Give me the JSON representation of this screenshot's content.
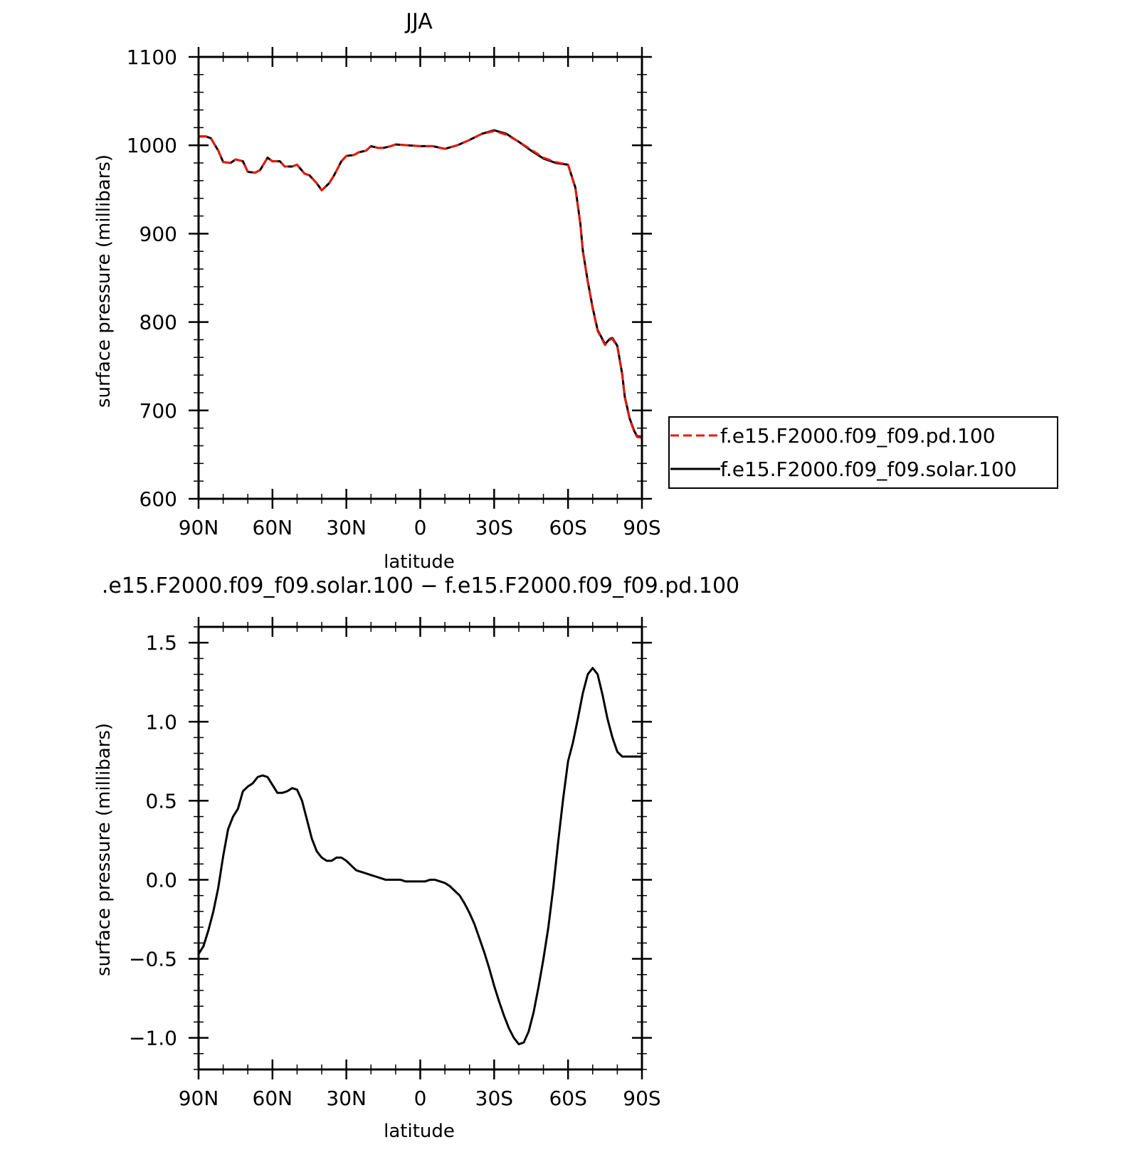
{
  "chart_data": [
    {
      "type": "line",
      "title": "JJA",
      "xlabel": "latitude",
      "ylabel": "surface pressure (millibars)",
      "xlim": [
        90,
        -90
      ],
      "ylim": [
        600,
        1100
      ],
      "x_ticks": [
        {
          "value": 90,
          "label": "90N"
        },
        {
          "value": 60,
          "label": "60N"
        },
        {
          "value": 30,
          "label": "30N"
        },
        {
          "value": 0,
          "label": "0"
        },
        {
          "value": -30,
          "label": "30S"
        },
        {
          "value": -60,
          "label": "60S"
        },
        {
          "value": -90,
          "label": "90S"
        }
      ],
      "y_ticks": [
        {
          "value": 600,
          "label": "600"
        },
        {
          "value": 700,
          "label": "700"
        },
        {
          "value": 800,
          "label": "800"
        },
        {
          "value": 900,
          "label": "900"
        },
        {
          "value": 1000,
          "label": "1000"
        },
        {
          "value": 1100,
          "label": "1100"
        }
      ],
      "legend_position": "right",
      "x": [
        90,
        87,
        85,
        82,
        80,
        77,
        75,
        72,
        70,
        67,
        65,
        62,
        60,
        57,
        55,
        52,
        50,
        47,
        45,
        42,
        40,
        37,
        35,
        32,
        30,
        27,
        25,
        22,
        20,
        17,
        15,
        12,
        10,
        5,
        0,
        -5,
        -10,
        -15,
        -20,
        -25,
        -30,
        -35,
        -40,
        -45,
        -50,
        -55,
        -60,
        -63,
        -65,
        -66,
        -68,
        -70,
        -72,
        -75,
        -77,
        -78,
        -80,
        -82,
        -83,
        -85,
        -87,
        -88,
        -90
      ],
      "series": [
        {
          "name": "f.e15.F2000.f09_f09.pd.100",
          "color": "#e8170f",
          "dash": "dashed",
          "values": [
            1010,
            1010,
            1008,
            994,
            981,
            980,
            984,
            982,
            970,
            969,
            972,
            986,
            982,
            982,
            976,
            976,
            978,
            968,
            966,
            957,
            949,
            957,
            966,
            982,
            988,
            989,
            992,
            994,
            999,
            997,
            997,
            999,
            1001,
            1000,
            999,
            999,
            996,
            1000,
            1006,
            1013,
            1016,
            1012,
            1004,
            995,
            986,
            981,
            978,
            951,
            910,
            880,
            845,
            815,
            790,
            774,
            780,
            781,
            772,
            740,
            715,
            690,
            675,
            670,
            669
          ]
        },
        {
          "name": "f.e15.F2000.f09_f09.solar.100",
          "color": "#000000",
          "dash": "solid",
          "values": [
            1010,
            1010,
            1008,
            994,
            981,
            980,
            984,
            982,
            970,
            969,
            972,
            986,
            982,
            982,
            976,
            976,
            978,
            968,
            966,
            957,
            949,
            957,
            966,
            982,
            988,
            989,
            992,
            994,
            999,
            997,
            997,
            999,
            1001,
            1000,
            999,
            999,
            996,
            1000,
            1006,
            1013,
            1017,
            1013,
            1004,
            994,
            985,
            980,
            978,
            952,
            911,
            881,
            846,
            816,
            791,
            775,
            781,
            782,
            773,
            741,
            716,
            691,
            676,
            671,
            670
          ]
        }
      ]
    },
    {
      "type": "line",
      "title": ".e15.F2000.f09_f09.solar.100 − f.e15.F2000.f09_f09.pd.100",
      "xlabel": "latitude",
      "ylabel": "surface pressure (millibars)",
      "xlim": [
        90,
        -90
      ],
      "ylim": [
        -1.2,
        1.6
      ],
      "x_ticks": [
        {
          "value": 90,
          "label": "90N"
        },
        {
          "value": 60,
          "label": "60N"
        },
        {
          "value": 30,
          "label": "30N"
        },
        {
          "value": 0,
          "label": "0"
        },
        {
          "value": -30,
          "label": "30S"
        },
        {
          "value": -60,
          "label": "60S"
        },
        {
          "value": -90,
          "label": "90S"
        }
      ],
      "y_ticks": [
        {
          "value": -1.0,
          "label": "−1.0"
        },
        {
          "value": -0.5,
          "label": "−0.5"
        },
        {
          "value": 0.0,
          "label": "0.0"
        },
        {
          "value": 0.5,
          "label": "0.5"
        },
        {
          "value": 1.0,
          "label": "1.0"
        },
        {
          "value": 1.5,
          "label": "1.5"
        }
      ],
      "x": [
        90,
        88,
        86,
        84,
        82,
        80,
        78,
        76,
        74,
        72,
        70,
        68,
        66,
        64,
        62,
        60,
        58,
        56,
        54,
        52,
        50,
        48,
        46,
        44,
        42,
        40,
        38,
        36,
        34,
        32,
        30,
        28,
        26,
        24,
        22,
        20,
        18,
        16,
        14,
        12,
        10,
        8,
        6,
        4,
        2,
        0,
        -2,
        -4,
        -6,
        -8,
        -10,
        -12,
        -14,
        -16,
        -18,
        -20,
        -22,
        -24,
        -26,
        -28,
        -30,
        -32,
        -34,
        -36,
        -38,
        -40,
        -42,
        -44,
        -46,
        -48,
        -50,
        -52,
        -54,
        -56,
        -58,
        -60,
        -62,
        -64,
        -66,
        -68,
        -70,
        -72,
        -74,
        -76,
        -78,
        -80,
        -82,
        -84,
        -86,
        -88,
        -90
      ],
      "series": [
        {
          "name": "",
          "color": "#000000",
          "values": [
            -0.47,
            -0.42,
            -0.32,
            -0.2,
            -0.05,
            0.15,
            0.32,
            0.4,
            0.45,
            0.56,
            0.59,
            0.61,
            0.65,
            0.66,
            0.65,
            0.6,
            0.55,
            0.55,
            0.56,
            0.58,
            0.57,
            0.5,
            0.38,
            0.26,
            0.18,
            0.14,
            0.12,
            0.12,
            0.14,
            0.14,
            0.12,
            0.09,
            0.06,
            0.05,
            0.04,
            0.03,
            0.02,
            0.01,
            0.0,
            0.0,
            0.0,
            0.0,
            -0.01,
            -0.01,
            -0.01,
            -0.01,
            -0.01,
            0.0,
            0.0,
            -0.01,
            -0.02,
            -0.04,
            -0.07,
            -0.1,
            -0.15,
            -0.21,
            -0.28,
            -0.37,
            -0.46,
            -0.56,
            -0.67,
            -0.77,
            -0.86,
            -0.94,
            -1.0,
            -1.04,
            -1.03,
            -0.96,
            -0.84,
            -0.68,
            -0.5,
            -0.3,
            -0.05,
            0.24,
            0.51,
            0.75,
            0.87,
            1.02,
            1.18,
            1.3,
            1.34,
            1.3,
            1.17,
            1.02,
            0.9,
            0.81,
            0.78,
            0.78,
            0.78,
            0.78,
            0.78
          ]
        }
      ]
    }
  ]
}
